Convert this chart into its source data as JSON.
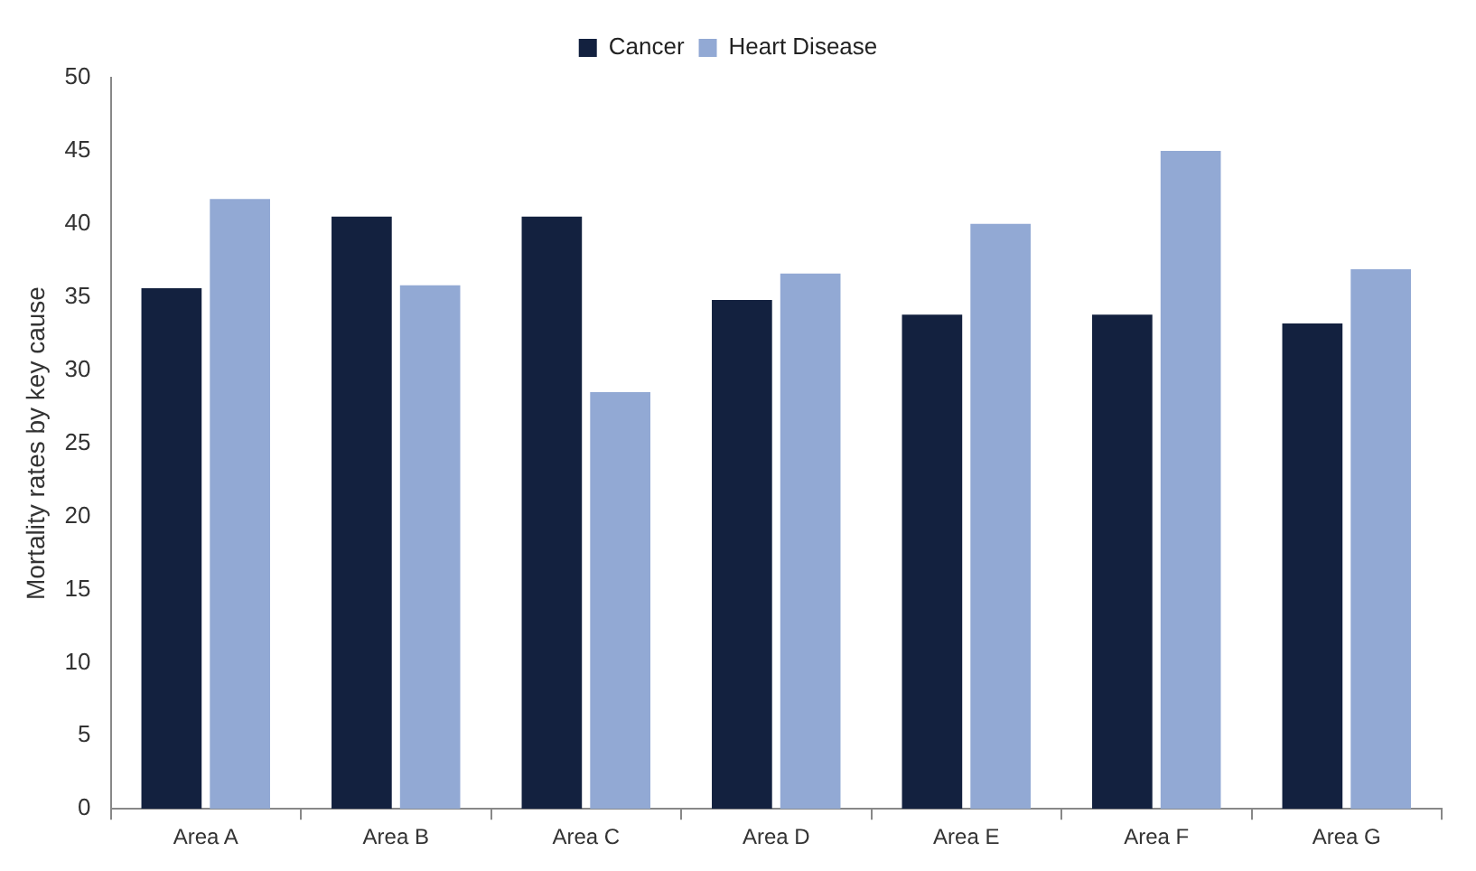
{
  "chart_data": {
    "type": "bar",
    "ylabel": "Mortality rates by key cause",
    "categories": [
      "Area A",
      "Area B",
      "Area C",
      "Area D",
      "Area E",
      "Area F",
      "Area G"
    ],
    "series": [
      {
        "name": "Cancer",
        "color": "#13213f",
        "values": [
          35.6,
          40.5,
          40.5,
          34.8,
          33.8,
          33.8,
          33.2
        ]
      },
      {
        "name": "Heart Disease",
        "color": "#92a9d4",
        "values": [
          41.7,
          35.8,
          28.5,
          36.6,
          40.0,
          45.0,
          36.9
        ]
      }
    ],
    "ylim": [
      0,
      50
    ],
    "yticks": [
      0,
      5,
      10,
      15,
      20,
      25,
      30,
      35,
      40,
      45,
      50
    ],
    "grid": false,
    "legend": "top"
  }
}
